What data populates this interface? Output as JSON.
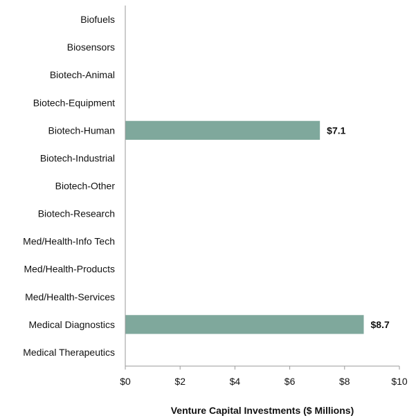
{
  "chart_data": {
    "type": "bar",
    "orientation": "horizontal",
    "categories": [
      "Biofuels",
      "Biosensors",
      "Biotech-Animal",
      "Biotech-Equipment",
      "Biotech-Human",
      "Biotech-Industrial",
      "Biotech-Other",
      "Biotech-Research",
      "Med/Health-Info Tech",
      "Med/Health-Products",
      "Med/Health-Services",
      "Medical Diagnostics",
      "Medical Therapeutics"
    ],
    "values": [
      null,
      null,
      null,
      null,
      7.1,
      null,
      null,
      null,
      null,
      null,
      null,
      8.7,
      null
    ],
    "data_labels": [
      "",
      "",
      "",
      "",
      "$7.1",
      "",
      "",
      "",
      "",
      "",
      "",
      "$8.7",
      ""
    ],
    "xlabel": "Venture Capital Investments ($ Millions)",
    "ylabel": "",
    "xlim": [
      0,
      10
    ],
    "xticks": [
      0,
      2,
      4,
      6,
      8,
      10
    ],
    "xtick_labels": [
      "$0",
      "$2",
      "$4",
      "$6",
      "$8",
      "$10"
    ],
    "bar_color": "#7fa89c",
    "grid": false,
    "legend": "none"
  }
}
